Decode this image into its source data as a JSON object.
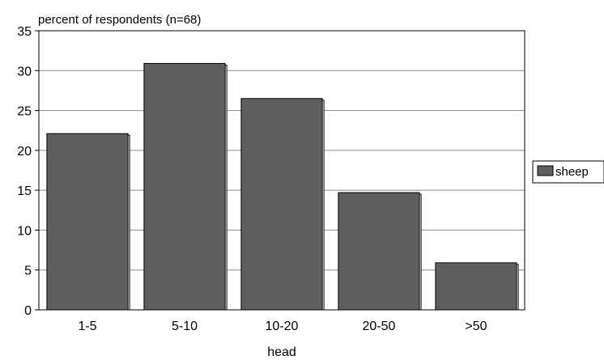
{
  "chart_data": {
    "type": "bar",
    "ylabel": "percent of respondents (n=68)",
    "xlabel": "head",
    "categories": [
      "1-5",
      "5-10",
      "10-20",
      "20-50",
      ">50"
    ],
    "series": [
      {
        "name": "sheep",
        "values": [
          22.1,
          30.9,
          26.5,
          14.7,
          5.9
        ],
        "color": "#5f5f5f"
      }
    ],
    "ylim": [
      0,
      35
    ],
    "yticks": [
      0,
      5,
      10,
      15,
      20,
      25,
      30,
      35
    ],
    "grid": true,
    "legend_position": "right"
  }
}
